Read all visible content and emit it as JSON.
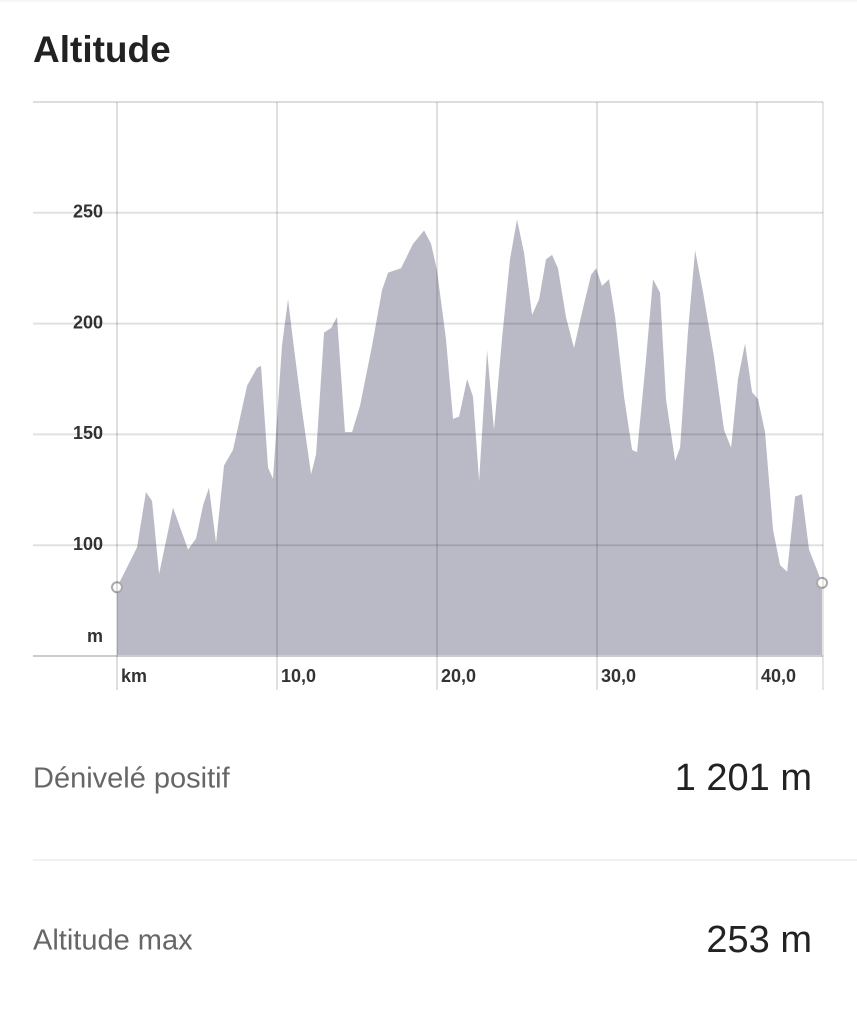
{
  "title": "Altitude",
  "chart_data": {
    "type": "area",
    "color": "#babac7",
    "ylabel": "m",
    "xlabel": "km",
    "x": [
      0,
      1.25,
      1.81,
      2.19,
      2.63,
      3.5,
      4.44,
      4.94,
      5.38,
      5.75,
      6.19,
      6.69,
      7.25,
      8.13,
      8.75,
      9,
      9.44,
      9.75,
      10.31,
      10.69,
      11.06,
      11.56,
      12.13,
      12.44,
      12.94,
      13.38,
      13.75,
      14.25,
      14.69,
      15.19,
      15.94,
      16.56,
      16.94,
      17.75,
      18.5,
      19.19,
      19.63,
      20,
      20.56,
      21,
      21.38,
      21.88,
      22.25,
      22.63,
      23.13,
      23.56,
      24.06,
      24.56,
      25,
      25.44,
      25.94,
      26.38,
      26.81,
      27.19,
      27.56,
      28.06,
      28.56,
      29.06,
      29.63,
      29.94,
      30.31,
      30.75,
      31.13,
      31.69,
      32.19,
      32.5,
      33,
      33.5,
      33.94,
      34.31,
      34.88,
      35.19,
      35.69,
      36.13,
      36.63,
      37.31,
      37.94,
      38.38,
      38.81,
      39.25,
      39.69,
      40.06,
      40.5,
      41,
      41.44,
      41.88,
      42.38,
      42.81,
      43.25,
      43.63,
      44.06
    ],
    "values": [
      81,
      99,
      124,
      120,
      87,
      117,
      98,
      103,
      118,
      126,
      101,
      136,
      143,
      172,
      180,
      181,
      135,
      130,
      190,
      211,
      189,
      161,
      132,
      141,
      196,
      198,
      203,
      151,
      151,
      163,
      190,
      215,
      223,
      225,
      236,
      242,
      236,
      224,
      193,
      157,
      158,
      175,
      167,
      129,
      188,
      152,
      193,
      229,
      247,
      232,
      204,
      211,
      229,
      231,
      225,
      203,
      189,
      205,
      222,
      225,
      217,
      220,
      203,
      167,
      143,
      142,
      179,
      220,
      214,
      166,
      138,
      144,
      197,
      233,
      214,
      185,
      152,
      144,
      175,
      191,
      169,
      166,
      151,
      107,
      91,
      88,
      122,
      123,
      98,
      91,
      83
    ],
    "xlim": [
      0,
      44.06
    ],
    "ylim": [
      50,
      300
    ],
    "xticks": [
      {
        "value": 10,
        "label": "10,0"
      },
      {
        "value": 20,
        "label": "20,0"
      },
      {
        "value": 30,
        "label": "30,0"
      },
      {
        "value": 40,
        "label": "40,0"
      }
    ],
    "yticks": [
      100,
      150,
      200,
      250
    ],
    "grid": true
  },
  "stats": [
    {
      "label": "Dénivelé positif",
      "value": "1 201 m"
    },
    {
      "label": "Altitude max",
      "value": "253 m"
    }
  ]
}
